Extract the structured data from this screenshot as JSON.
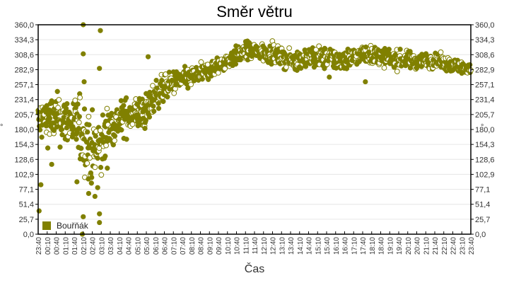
{
  "chart_data": {
    "type": "scatter",
    "title": "Směr větru",
    "xlabel": "Čas",
    "ylabel": "°",
    "ylabel_right": "°",
    "ylim": [
      0,
      360
    ],
    "y_ticks": [
      "0,0",
      "25,7",
      "51,4",
      "77,1",
      "102,9",
      "128,6",
      "154,3",
      "180,0",
      "205,7",
      "231,4",
      "257,1",
      "282,9",
      "308,6",
      "334,3",
      "360,0"
    ],
    "x_ticks": [
      "23:40",
      "00:10",
      "00:40",
      "01:10",
      "01:40",
      "02:10",
      "02:40",
      "03:10",
      "03:40",
      "04:10",
      "04:40",
      "05:10",
      "05:40",
      "06:10",
      "06:40",
      "07:10",
      "07:40",
      "08:10",
      "08:40",
      "09:10",
      "09:40",
      "10:10",
      "10:40",
      "11:10",
      "11:40",
      "12:10",
      "12:40",
      "13:10",
      "13:40",
      "14:10",
      "14:40",
      "15:10",
      "15:40",
      "16:10",
      "16:40",
      "17:10",
      "17:40",
      "18:10",
      "18:40",
      "19:10",
      "19:40",
      "20:10",
      "20:40",
      "21:10",
      "21:40",
      "22:10",
      "22:40",
      "23:10",
      "23:40"
    ],
    "grid": true,
    "legend_position": "bottom-left-inside",
    "series": [
      {
        "name": "Bouřňák",
        "color": "#808000",
        "trend": [
          {
            "t": 0,
            "mean": 195,
            "spread": 35
          },
          {
            "t": 2,
            "mean": 200,
            "spread": 40
          },
          {
            "t": 4,
            "mean": 190,
            "spread": 45
          },
          {
            "t": 5,
            "mean": 170,
            "spread": 60
          },
          {
            "t": 6,
            "mean": 140,
            "spread": 60
          },
          {
            "t": 7,
            "mean": 150,
            "spread": 55
          },
          {
            "t": 8,
            "mean": 185,
            "spread": 35
          },
          {
            "t": 10,
            "mean": 205,
            "spread": 30
          },
          {
            "t": 12,
            "mean": 210,
            "spread": 30
          },
          {
            "t": 13,
            "mean": 240,
            "spread": 25
          },
          {
            "t": 15,
            "mean": 260,
            "spread": 20
          },
          {
            "t": 18,
            "mean": 275,
            "spread": 15
          },
          {
            "t": 20,
            "mean": 290,
            "spread": 15
          },
          {
            "t": 23,
            "mean": 315,
            "spread": 15
          },
          {
            "t": 26,
            "mean": 310,
            "spread": 15
          },
          {
            "t": 28,
            "mean": 298,
            "spread": 15
          },
          {
            "t": 30,
            "mean": 305,
            "spread": 18
          },
          {
            "t": 34,
            "mean": 300,
            "spread": 18
          },
          {
            "t": 36,
            "mean": 310,
            "spread": 15
          },
          {
            "t": 40,
            "mean": 300,
            "spread": 15
          },
          {
            "t": 44,
            "mean": 298,
            "spread": 12
          },
          {
            "t": 46,
            "mean": 290,
            "spread": 12
          },
          {
            "t": 48,
            "mean": 285,
            "spread": 10
          }
        ],
        "outliers": [
          {
            "t": 5.0,
            "v": 360
          },
          {
            "t": 5.0,
            "v": 310
          },
          {
            "t": 5.1,
            "v": 262
          },
          {
            "t": 6.9,
            "v": 350
          },
          {
            "t": 6.8,
            "v": 285
          },
          {
            "t": 5.0,
            "v": 30
          },
          {
            "t": 4.9,
            "v": 0
          },
          {
            "t": 6.8,
            "v": 35
          },
          {
            "t": 6.8,
            "v": 20
          },
          {
            "t": 0.1,
            "v": 40
          },
          {
            "t": 0.3,
            "v": 85
          },
          {
            "t": 1.5,
            "v": 120
          },
          {
            "t": 12.2,
            "v": 305
          },
          {
            "t": 32.3,
            "v": 270
          },
          {
            "t": 36.3,
            "v": 262
          },
          {
            "t": 4.3,
            "v": 90
          },
          {
            "t": 5.6,
            "v": 70
          },
          {
            "t": 6.3,
            "v": 65
          },
          {
            "t": 6.6,
            "v": 80
          }
        ]
      }
    ]
  }
}
